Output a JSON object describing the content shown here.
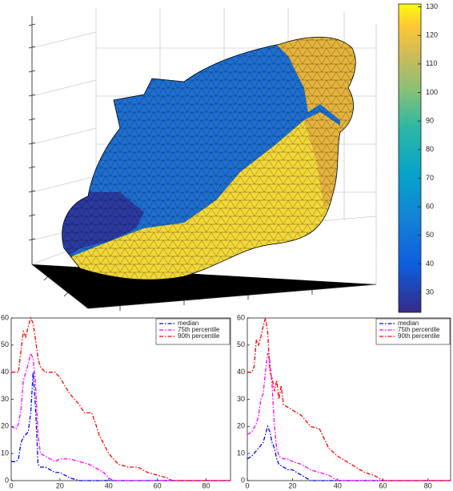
{
  "chart_data": [
    {
      "type": "surface",
      "colorbar": {
        "clim": [
          23,
          131
        ],
        "ticks": [
          30,
          40,
          50,
          60,
          70,
          80,
          90,
          100,
          110,
          120,
          130
        ]
      }
    },
    {
      "type": "line",
      "xlim": [
        0,
        90
      ],
      "ylim": [
        0,
        60
      ],
      "xticks": [
        0,
        20,
        40,
        60,
        80
      ],
      "yticks": [
        0,
        10,
        20,
        30,
        40,
        50,
        60
      ],
      "series": [
        {
          "name": "median",
          "color": "#0000ff",
          "x": [
            0,
            2,
            3,
            4,
            5,
            6,
            7,
            8,
            9,
            10,
            11,
            12,
            14,
            16,
            18,
            20,
            22,
            24,
            26,
            28,
            90
          ],
          "values": [
            7,
            7,
            8,
            14,
            16,
            17,
            18,
            25,
            40,
            27,
            6,
            5,
            5,
            4,
            3,
            3,
            2,
            1,
            0.5,
            0,
            0
          ]
        },
        {
          "name": "75th percentile",
          "color": "#ff00ff",
          "x": [
            0,
            2,
            3,
            4,
            5,
            6,
            7,
            8,
            9,
            10,
            11,
            12,
            14,
            16,
            18,
            20,
            24,
            28,
            32,
            36,
            38,
            40,
            42,
            90
          ],
          "values": [
            20,
            19,
            21,
            26,
            37,
            40,
            43,
            47,
            45,
            36,
            17,
            10,
            9,
            8,
            7,
            8,
            8,
            7,
            6,
            4,
            3,
            1,
            0,
            0
          ]
        },
        {
          "name": "90th percentile",
          "color": "#ff0000",
          "x": [
            0,
            3,
            4,
            5,
            6,
            7,
            8,
            9,
            10,
            11,
            12,
            14,
            18,
            20,
            24,
            28,
            30,
            33,
            35,
            36,
            40,
            44,
            48,
            52,
            56,
            60,
            64,
            66,
            90
          ],
          "values": [
            40,
            40,
            48,
            55,
            53,
            57,
            60,
            58,
            52,
            45,
            42,
            40,
            40,
            38,
            32,
            28,
            25,
            25,
            20,
            17,
            10,
            6,
            5,
            5,
            3,
            2,
            1,
            0,
            0
          ]
        }
      ]
    },
    {
      "type": "line",
      "xlim": [
        0,
        90
      ],
      "ylim": [
        0,
        60
      ],
      "xticks": [
        0,
        20,
        40,
        60,
        80
      ],
      "yticks": [
        0,
        10,
        20,
        30,
        40,
        50,
        60
      ],
      "series": [
        {
          "name": "median",
          "color": "#0000ff",
          "x": [
            0,
            2,
            4,
            6,
            7,
            8,
            9,
            10,
            11,
            12,
            13,
            14,
            16,
            18,
            20,
            22,
            24,
            26,
            28,
            90
          ],
          "values": [
            8,
            9,
            11,
            13,
            14,
            17,
            20,
            18,
            14,
            12,
            8,
            6,
            5,
            4,
            4,
            3,
            2,
            1,
            0,
            0
          ]
        },
        {
          "name": "75th percentile",
          "color": "#ff00ff",
          "x": [
            0,
            2,
            4,
            5,
            6,
            7,
            8,
            9,
            10,
            11,
            12,
            13,
            14,
            16,
            18,
            20,
            24,
            28,
            32,
            36,
            38,
            40,
            90
          ],
          "values": [
            17,
            18,
            21,
            24,
            30,
            32,
            40,
            47,
            44,
            35,
            20,
            12,
            9,
            8,
            8,
            7,
            6,
            4,
            3,
            2,
            1,
            0,
            0
          ]
        },
        {
          "name": "90th percentile",
          "color": "#ff0000",
          "x": [
            0,
            2,
            3,
            4,
            5,
            6,
            7,
            8,
            9,
            10,
            11,
            12,
            13,
            14,
            15,
            16,
            18,
            20,
            24,
            28,
            32,
            36,
            40,
            44,
            48,
            52,
            56,
            58,
            60,
            90
          ],
          "values": [
            40,
            40,
            42,
            52,
            50,
            53,
            57,
            60,
            55,
            40,
            38,
            33,
            37,
            30,
            35,
            28,
            27,
            26,
            24,
            20,
            19,
            12,
            9,
            7,
            5,
            3,
            2,
            1,
            0,
            0
          ]
        }
      ]
    }
  ]
}
